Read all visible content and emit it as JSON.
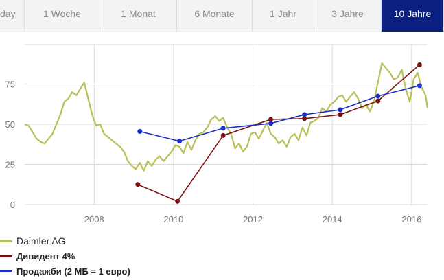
{
  "tabs": [
    {
      "label": "day",
      "active": false
    },
    {
      "label": "1 Woche",
      "active": false
    },
    {
      "label": "1 Monat",
      "active": false
    },
    {
      "label": "6 Monate",
      "active": false
    },
    {
      "label": "1 Jahr",
      "active": false
    },
    {
      "label": "3 Jahre",
      "active": false
    },
    {
      "label": "10 Jahre",
      "active": true
    }
  ],
  "colors": {
    "daimler": "#b9be55",
    "dividend": "#7a1010",
    "sales": "#1a2fc8",
    "grid": "#d9d9d9",
    "tab_active_bg": "#0b1f80"
  },
  "chart_data": {
    "type": "line",
    "ylim": [
      0,
      100
    ],
    "yticks": [
      0,
      25,
      50,
      75
    ],
    "xlim": [
      2006.25,
      2016.4
    ],
    "xticks": [
      2008,
      2010,
      2012,
      2014,
      2016
    ],
    "grid": true,
    "legend_position": "bottom-left",
    "series": [
      {
        "name": "Daimler AG",
        "style": "line",
        "x": [
          2006.25,
          2006.35,
          2006.45,
          2006.55,
          2006.65,
          2006.75,
          2006.85,
          2006.95,
          2007.05,
          2007.15,
          2007.25,
          2007.35,
          2007.45,
          2007.55,
          2007.65,
          2007.75,
          2007.85,
          2007.95,
          2008.05,
          2008.15,
          2008.25,
          2008.35,
          2008.45,
          2008.55,
          2008.65,
          2008.75,
          2008.85,
          2008.95,
          2009.05,
          2009.15,
          2009.25,
          2009.35,
          2009.45,
          2009.55,
          2009.65,
          2009.75,
          2009.85,
          2009.95,
          2010.05,
          2010.15,
          2010.25,
          2010.35,
          2010.45,
          2010.55,
          2010.65,
          2010.75,
          2010.85,
          2010.95,
          2011.05,
          2011.15,
          2011.25,
          2011.35,
          2011.45,
          2011.55,
          2011.65,
          2011.75,
          2011.85,
          2011.95,
          2012.05,
          2012.15,
          2012.25,
          2012.35,
          2012.45,
          2012.55,
          2012.65,
          2012.75,
          2012.85,
          2012.95,
          2013.05,
          2013.15,
          2013.25,
          2013.35,
          2013.45,
          2013.55,
          2013.65,
          2013.75,
          2013.85,
          2013.95,
          2014.05,
          2014.15,
          2014.25,
          2014.35,
          2014.45,
          2014.55,
          2014.65,
          2014.75,
          2014.85,
          2014.95,
          2015.05,
          2015.15,
          2015.25,
          2015.35,
          2015.45,
          2015.55,
          2015.65,
          2015.75,
          2015.85,
          2015.95,
          2016.05,
          2016.15,
          2016.25,
          2016.35,
          2016.4
        ],
        "y": [
          50,
          49,
          45,
          41,
          39,
          38,
          41,
          44,
          50,
          56,
          64,
          66,
          70,
          68,
          72,
          76,
          66,
          56,
          49,
          50,
          44,
          42,
          40,
          38,
          36,
          33,
          27,
          24,
          22,
          26,
          21,
          27,
          24,
          28,
          30,
          27,
          30,
          33,
          37,
          36,
          32,
          39,
          34,
          40,
          44,
          45,
          48,
          53,
          55,
          52,
          54,
          48,
          44,
          35,
          38,
          33,
          36,
          44,
          45,
          41,
          46,
          51,
          44,
          42,
          38,
          40,
          36,
          42,
          44,
          40,
          48,
          43,
          51,
          52,
          54,
          60,
          58,
          62,
          64,
          67,
          68,
          64,
          67,
          70,
          66,
          60,
          62,
          58,
          64,
          76,
          88,
          85,
          82,
          78,
          79,
          84,
          72,
          64,
          78,
          82,
          73,
          68,
          60
        ],
        "color_key": "daimler"
      },
      {
        "name": "Дивидент 4%",
        "style": "line-markers",
        "x": [
          2009.1,
          2010.1,
          2011.25,
          2012.45,
          2013.3,
          2014.2,
          2015.15,
          2016.2
        ],
        "y": [
          12.5,
          2,
          43,
          53,
          53.5,
          56,
          64.5,
          87
        ],
        "color_key": "dividend"
      },
      {
        "name": "Продажби (2 МБ = 1 евро)",
        "style": "line-markers",
        "x": [
          2009.15,
          2010.15,
          2011.25,
          2012.45,
          2013.3,
          2014.2,
          2015.15,
          2016.2
        ],
        "y": [
          45.5,
          39.5,
          47.5,
          50.5,
          56,
          59,
          67.5,
          74
        ],
        "color_key": "sales"
      }
    ]
  }
}
